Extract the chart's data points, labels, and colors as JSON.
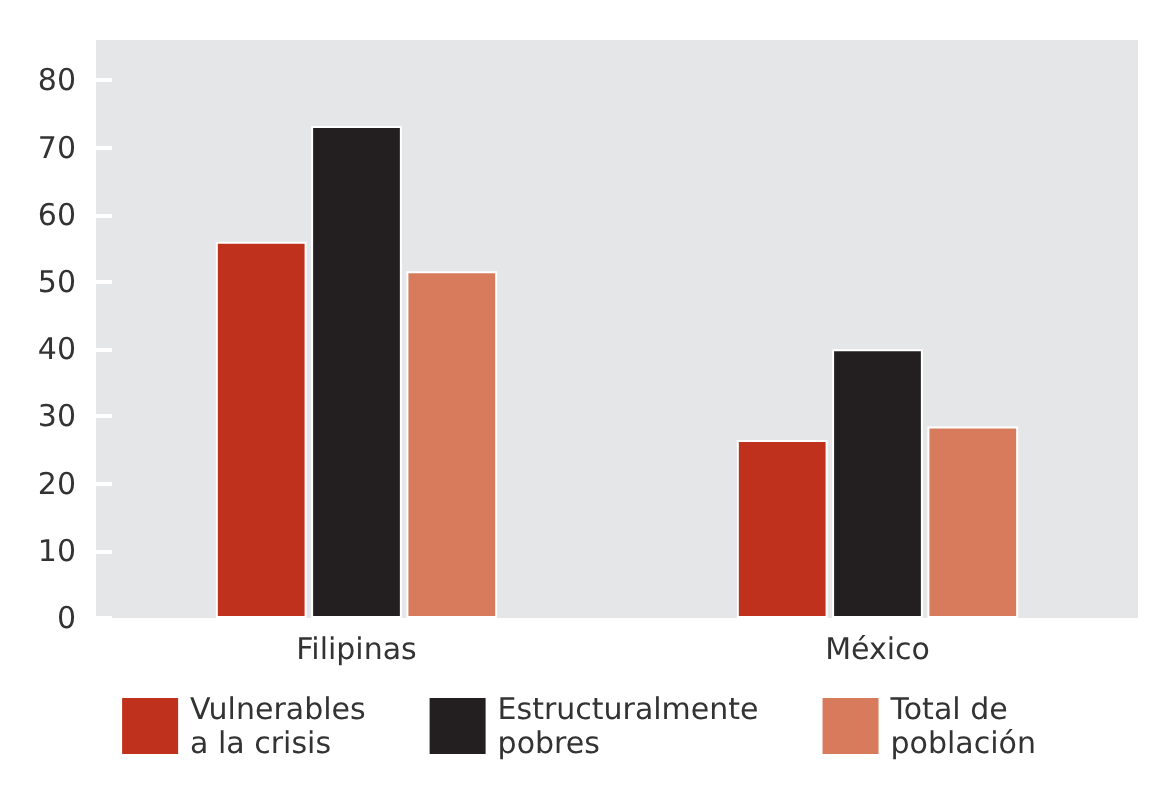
{
  "chart_data": {
    "type": "bar",
    "categories": [
      "Filipinas",
      "México"
    ],
    "series": [
      {
        "name": "Vulnerables\na la crisis",
        "color": "#bf311c",
        "values": [
          56,
          26.5
        ]
      },
      {
        "name": "Estructuralmente\npobres",
        "color": "#231f20",
        "values": [
          73.2,
          40
        ]
      },
      {
        "name": "Total de\npoblación",
        "color": "#d77b5c",
        "values": [
          51.6,
          28.5
        ]
      }
    ],
    "ylim": [
      0,
      86
    ],
    "yticks": [
      0,
      10,
      20,
      30,
      40,
      50,
      60,
      70,
      80
    ],
    "grid": false,
    "legend": "bottom"
  }
}
